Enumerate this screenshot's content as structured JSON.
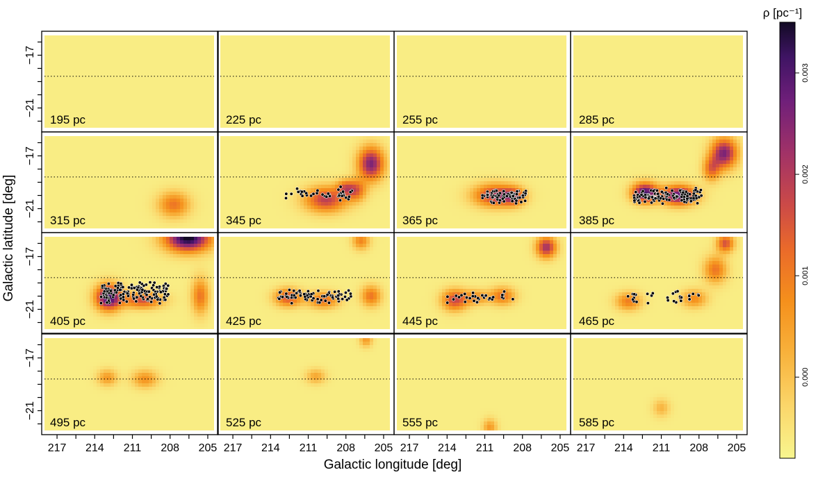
{
  "chart_data": {
    "type": "heatmap",
    "xlabel": "Galactic longitude [deg]",
    "ylabel": "Galactic latitude [deg]",
    "xlim": [
      218,
      204.5
    ],
    "ylim": [
      -22.5,
      -15.5
    ],
    "x_ticks": [
      217,
      214,
      211,
      208,
      205
    ],
    "y_ticks": [
      -17,
      -21
    ],
    "reference_latitude": -18.6,
    "colorbar": {
      "label": "ρ [pc⁻¹]",
      "min": -0.0008,
      "max": 0.0035,
      "ticks": [
        "0.000",
        "0.001",
        "0.002",
        "0.003"
      ],
      "tick_values": [
        0.0,
        0.001,
        0.002,
        0.003
      ],
      "colormap": [
        "#f8f68f",
        "#fbd66a",
        "#f8b23c",
        "#f5901c",
        "#ea6a2a",
        "#cc4a47",
        "#a13267",
        "#6f1f7a",
        "#3f1464",
        "#120a24"
      ]
    },
    "panels": [
      {
        "label": "195 pc",
        "blobs": [],
        "stars": 0
      },
      {
        "label": "225 pc",
        "blobs": [],
        "stars": 0
      },
      {
        "label": "255 pc",
        "blobs": [],
        "stars": 0
      },
      {
        "label": "285 pc",
        "blobs": [],
        "stars": 0
      },
      {
        "label": "315 pc",
        "blobs": [
          {
            "l": 207.7,
            "b": -20.7,
            "sl": 1.1,
            "sb": 0.85,
            "v": 0.0011
          }
        ],
        "stars": 0
      },
      {
        "label": "345 pc",
        "blobs": [
          {
            "l": 206.0,
            "b": -17.6,
            "sl": 0.9,
            "sb": 1.1,
            "v": 0.0026
          },
          {
            "l": 207.2,
            "b": -19.6,
            "sl": 0.7,
            "sb": 0.7,
            "v": 0.0013
          },
          {
            "l": 209.6,
            "b": -20.3,
            "sl": 1.5,
            "sb": 0.85,
            "v": 0.0019
          },
          {
            "l": 208.1,
            "b": -19.4,
            "sl": 0.6,
            "sb": 0.5,
            "v": 0.0009
          }
        ],
        "stars": 40,
        "star_region": {
          "l0": 212.8,
          "l1": 207.5,
          "b0": -20.6,
          "b1": -19.2
        }
      },
      {
        "label": "365 pc",
        "blobs": [
          {
            "l": 210.2,
            "b": -20.0,
            "sl": 1.5,
            "sb": 0.75,
            "v": 0.002
          },
          {
            "l": 208.7,
            "b": -20.1,
            "sl": 0.8,
            "sb": 0.6,
            "v": 0.0012
          }
        ],
        "stars": 75,
        "star_region": {
          "l0": 211.2,
          "l1": 207.7,
          "b0": -20.7,
          "b1": -19.4
        }
      },
      {
        "label": "385 pc",
        "blobs": [
          {
            "l": 206.0,
            "b": -16.8,
            "sl": 0.9,
            "sb": 1.0,
            "v": 0.0026
          },
          {
            "l": 212.3,
            "b": -19.8,
            "sl": 0.9,
            "sb": 0.65,
            "v": 0.0031
          },
          {
            "l": 209.6,
            "b": -20.0,
            "sl": 1.2,
            "sb": 0.65,
            "v": 0.0029
          },
          {
            "l": 207.0,
            "b": -18.0,
            "sl": 0.6,
            "sb": 0.8,
            "v": 0.0012
          }
        ],
        "stars": 130,
        "star_region": {
          "l0": 213.2,
          "l1": 207.8,
          "b0": -20.7,
          "b1": -19.4
        }
      },
      {
        "label": "405 pc",
        "blobs": [
          {
            "l": 206.6,
            "b": -15.6,
            "sl": 1.6,
            "sb": 0.9,
            "v": 0.0036
          },
          {
            "l": 212.9,
            "b": -20.1,
            "sl": 0.9,
            "sb": 0.85,
            "v": 0.0032
          },
          {
            "l": 210.2,
            "b": -20.3,
            "sl": 1.4,
            "sb": 0.55,
            "v": 0.0016
          },
          {
            "l": 205.6,
            "b": -20.0,
            "sl": 0.6,
            "sb": 1.2,
            "v": 0.0011
          }
        ],
        "stars": 150,
        "star_region": {
          "l0": 213.5,
          "l1": 208.0,
          "b0": -20.6,
          "b1": -18.8
        }
      },
      {
        "label": "425 pc",
        "blobs": [
          {
            "l": 212.6,
            "b": -20.1,
            "sl": 0.95,
            "sb": 0.6,
            "v": 0.0016
          },
          {
            "l": 209.8,
            "b": -20.3,
            "sl": 1.1,
            "sb": 0.55,
            "v": 0.0012
          },
          {
            "l": 206.0,
            "b": -20.0,
            "sl": 0.7,
            "sb": 0.7,
            "v": 0.0011
          },
          {
            "l": 206.8,
            "b": -15.8,
            "sl": 0.6,
            "sb": 0.6,
            "v": 0.0009
          }
        ],
        "stars": 80,
        "star_region": {
          "l0": 213.4,
          "l1": 207.6,
          "b0": -20.6,
          "b1": -19.4
        }
      },
      {
        "label": "445 pc",
        "blobs": [
          {
            "l": 206.1,
            "b": -16.3,
            "sl": 0.7,
            "sb": 0.7,
            "v": 0.0022
          },
          {
            "l": 213.4,
            "b": -20.3,
            "sl": 0.9,
            "sb": 0.7,
            "v": 0.0017
          },
          {
            "l": 209.6,
            "b": -20.0,
            "sl": 0.9,
            "sb": 0.6,
            "v": 0.0011
          },
          {
            "l": 211.7,
            "b": -20.1,
            "sl": 0.9,
            "sb": 0.5,
            "v": 0.0007
          }
        ],
        "stars": 32,
        "star_region": {
          "l0": 214.0,
          "l1": 208.5,
          "b0": -20.6,
          "b1": -19.6
        }
      },
      {
        "label": "465 pc",
        "blobs": [
          {
            "l": 205.9,
            "b": -16.0,
            "sl": 0.6,
            "sb": 0.6,
            "v": 0.0016
          },
          {
            "l": 206.7,
            "b": -18.0,
            "sl": 0.8,
            "sb": 0.9,
            "v": 0.0011
          },
          {
            "l": 213.6,
            "b": -20.4,
            "sl": 0.9,
            "sb": 0.6,
            "v": 0.001
          },
          {
            "l": 208.4,
            "b": -20.2,
            "sl": 0.9,
            "sb": 0.6,
            "v": 0.0008
          }
        ],
        "stars": 30,
        "star_region": {
          "l0": 214.0,
          "l1": 208.0,
          "b0": -20.6,
          "b1": -19.4
        }
      },
      {
        "label": "495 pc",
        "blobs": [
          {
            "l": 213.0,
            "b": -18.5,
            "sl": 0.7,
            "sb": 0.55,
            "v": 0.0006
          },
          {
            "l": 210.0,
            "b": -18.6,
            "sl": 0.9,
            "sb": 0.6,
            "v": 0.0007
          }
        ],
        "stars": 0
      },
      {
        "label": "525 pc",
        "blobs": [
          {
            "l": 206.4,
            "b": -15.6,
            "sl": 0.45,
            "sb": 0.5,
            "v": 0.0006
          },
          {
            "l": 210.4,
            "b": -18.4,
            "sl": 0.7,
            "sb": 0.5,
            "v": 0.0004
          }
        ],
        "stars": 0
      },
      {
        "label": "555 pc",
        "blobs": [
          {
            "l": 210.6,
            "b": -22.3,
            "sl": 0.5,
            "sb": 0.6,
            "v": 0.0006
          }
        ],
        "stars": 0
      },
      {
        "label": "585 pc",
        "blobs": [
          {
            "l": 211.0,
            "b": -20.8,
            "sl": 0.6,
            "sb": 0.6,
            "v": 0.0002
          }
        ],
        "stars": 0
      }
    ]
  }
}
